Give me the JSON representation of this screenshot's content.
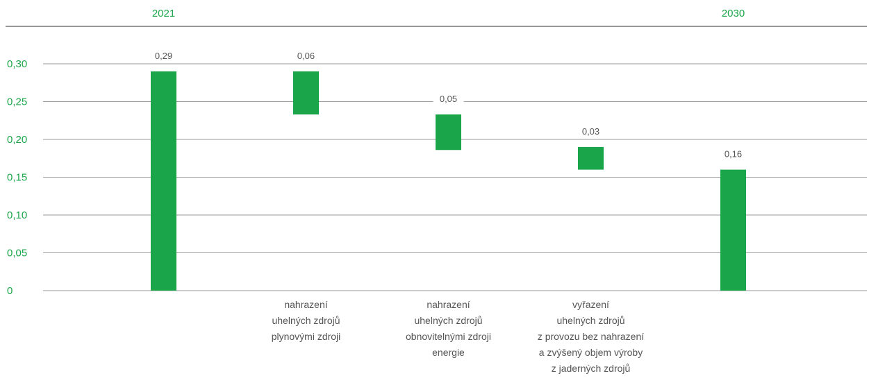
{
  "chart_data": {
    "type": "bar",
    "subtype": "waterfall",
    "title": "",
    "xlabel": "",
    "ylabel": "",
    "ylim": [
      0,
      0.3
    ],
    "yticks": [
      {
        "value": 0,
        "label": "0"
      },
      {
        "value": 0.05,
        "label": "0,05"
      },
      {
        "value": 0.1,
        "label": "0,10"
      },
      {
        "value": 0.15,
        "label": "0,15"
      },
      {
        "value": 0.2,
        "label": "0,20"
      },
      {
        "value": 0.25,
        "label": "0,25"
      },
      {
        "value": 0.3,
        "label": "0,30"
      }
    ],
    "grid": true,
    "legend": "none",
    "header_labels": [
      {
        "text": "2021",
        "bar_index": 0
      },
      {
        "text": "2030",
        "bar_index": 4
      }
    ],
    "bars": [
      {
        "category": "",
        "start": 0,
        "end": 0.29,
        "label": "0,29"
      },
      {
        "category": "nahrazení\nuhelných zdrojů\nplynovými zdroji",
        "start": 0.233,
        "end": 0.29,
        "label": "0,06"
      },
      {
        "category": "nahrazení\nuhelných zdrojů\nobnovitelnými zdroji\nenergie",
        "start": 0.186,
        "end": 0.233,
        "label": "0,05"
      },
      {
        "category": "vyřazení\nuhelných zdrojů\nz provozu bez nahrazení\na zvýšený objem výroby\nz jaderných zdrojů",
        "start": 0.16,
        "end": 0.19,
        "label": "0,03"
      },
      {
        "category": "",
        "start": 0,
        "end": 0.16,
        "label": "0,16"
      }
    ]
  },
  "colors": {
    "bar": "#1ba54a",
    "accent_text": "#1ba54a",
    "grid": "#9a9a9a",
    "top_rule": "#333333",
    "data_label": "#555555",
    "category_label": "#555555"
  }
}
